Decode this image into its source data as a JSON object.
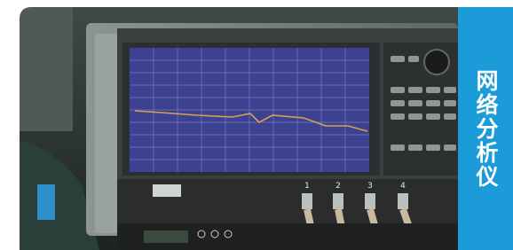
{
  "label": "网络分析仪",
  "ports": [
    "1",
    "2",
    "3",
    "4"
  ]
}
